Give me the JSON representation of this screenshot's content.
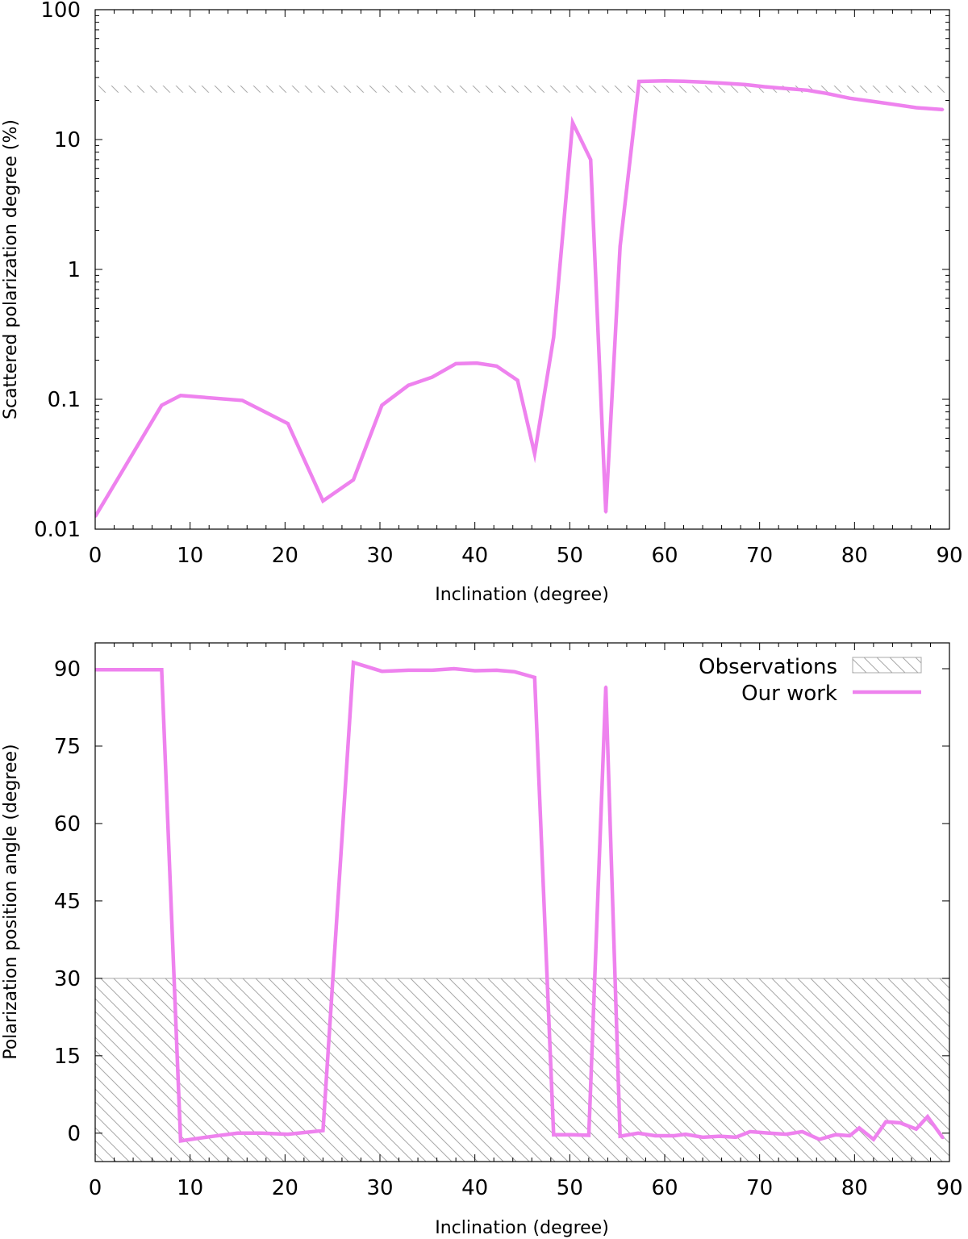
{
  "colors": {
    "series": "#ee82ee",
    "hatch": "#a8a8a8",
    "axis": "#000000"
  },
  "chart_data": [
    {
      "type": "line",
      "xlabel": "Inclination (degree)",
      "ylabel": "Scattered polarization degree (%)",
      "xlim": [
        0,
        90
      ],
      "ylim": [
        0.01,
        100
      ],
      "yscale": "log",
      "xticks": [
        "0",
        "10",
        "20",
        "30",
        "40",
        "50",
        "60",
        "70",
        "80",
        "90"
      ],
      "yticks": [
        "0.01",
        "0.1",
        "1",
        "10",
        "100"
      ],
      "grid": false,
      "observations": {
        "type": "hatched-band",
        "ymin": 23.0,
        "ymax": 26.0
      },
      "series": [
        {
          "x": [
            0,
            7,
            9,
            15.5,
            20.3,
            24,
            27.2,
            30.2,
            33,
            35.5,
            38,
            40.2,
            42.3,
            44.5,
            46.3,
            48.3,
            50.3,
            52.2,
            53.8,
            55.3,
            57.3,
            60,
            62,
            64,
            66,
            68.5,
            70.5,
            72.5,
            75,
            77,
            79.5,
            82,
            84,
            86.5,
            89.3
          ],
          "y": [
            0.0125,
            0.09,
            0.107,
            0.098,
            0.065,
            0.0165,
            0.024,
            0.09,
            0.128,
            0.148,
            0.188,
            0.19,
            0.18,
            0.14,
            0.038,
            0.3,
            13.5,
            7.0,
            0.0135,
            1.5,
            28.0,
            28.3,
            28.1,
            27.7,
            27.2,
            26.5,
            25.5,
            24.8,
            24.0,
            22.7,
            20.8,
            19.6,
            18.7,
            17.6,
            17.0
          ]
        }
      ]
    },
    {
      "type": "line",
      "xlabel": "Inclination (degree)",
      "ylabel": "Polarization position angle (degree)",
      "xlim": [
        0,
        90
      ],
      "ylim": [
        -5.5,
        95
      ],
      "xticks": [
        "0",
        "10",
        "20",
        "30",
        "40",
        "50",
        "60",
        "70",
        "80",
        "90"
      ],
      "yticks": [
        "0",
        "15",
        "30",
        "45",
        "60",
        "75",
        "90"
      ],
      "grid": false,
      "legend": {
        "position": "top-right",
        "entries": [
          "Observations",
          "Our work"
        ]
      },
      "observations": {
        "name": "Observations",
        "type": "hatched-band",
        "ymin": -5.5,
        "ymax": 30
      },
      "series": [
        {
          "name": "Our work",
          "x": [
            0,
            7,
            9,
            12,
            15,
            17.5,
            20.3,
            24,
            27.2,
            30.2,
            33,
            35.5,
            37.8,
            40,
            42.3,
            44.2,
            46.3,
            48.3,
            50.2,
            52,
            53.8,
            55.3,
            57.2,
            59,
            61,
            62.2,
            64,
            65.8,
            67.5,
            69,
            71,
            72.8,
            74.5,
            76.3,
            78,
            79.5,
            80.5,
            82,
            83.3,
            84.8,
            86.5,
            87.7,
            89.3
          ],
          "y": [
            89.8,
            89.8,
            -1.5,
            -0.7,
            0,
            0,
            -0.2,
            0.5,
            91.2,
            89.5,
            89.7,
            89.7,
            90,
            89.6,
            89.7,
            89.4,
            88.3,
            -0.3,
            -0.3,
            -0.4,
            86.5,
            -0.6,
            0,
            -0.5,
            -0.5,
            -0.2,
            -0.8,
            -0.6,
            -0.8,
            0.3,
            0,
            -0.2,
            0.3,
            -1.2,
            -0.3,
            -0.5,
            1.0,
            -1.2,
            2.2,
            2.0,
            0.8,
            3.2,
            -0.9
          ]
        }
      ]
    }
  ]
}
